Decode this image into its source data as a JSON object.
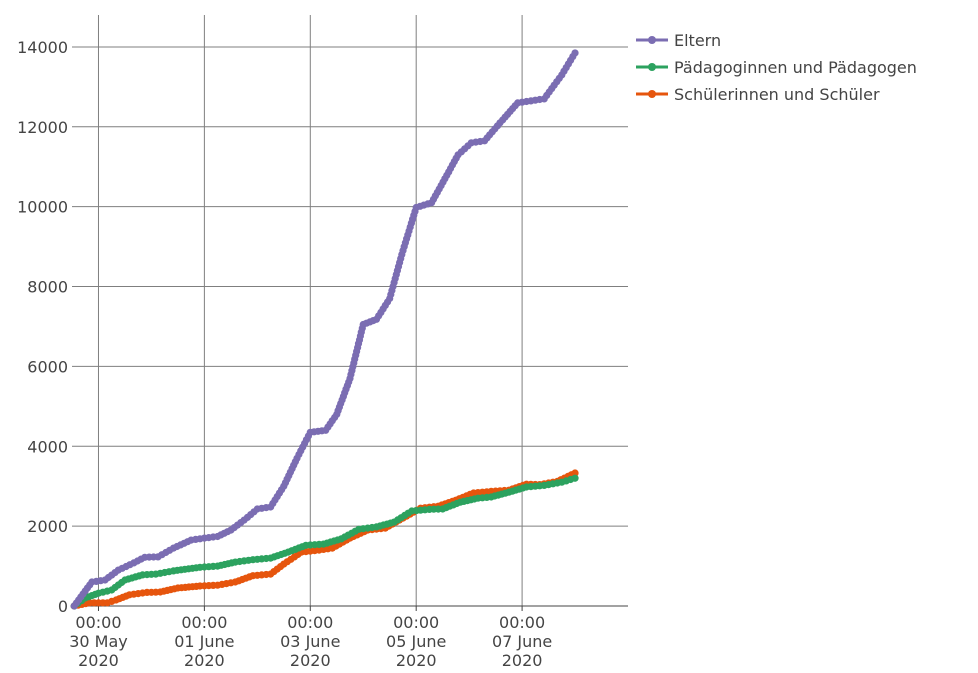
{
  "chart_data": {
    "type": "line",
    "title": "",
    "xlabel": "",
    "ylabel": "",
    "x_ticks": [
      {
        "date": "2020-05-30T00:00",
        "lines": [
          "00:00",
          "30 May",
          "2020"
        ]
      },
      {
        "date": "2020-06-01T00:00",
        "lines": [
          "00:00",
          "01 June",
          "2020"
        ]
      },
      {
        "date": "2020-06-03T00:00",
        "lines": [
          "00:00",
          "03 June",
          "2020"
        ]
      },
      {
        "date": "2020-06-05T00:00",
        "lines": [
          "00:00",
          "05 June",
          "2020"
        ]
      },
      {
        "date": "2020-06-07T00:00",
        "lines": [
          "00:00",
          "07 June",
          "2020"
        ]
      }
    ],
    "y_ticks": [
      0,
      2000,
      4000,
      6000,
      8000,
      10000,
      12000,
      14000
    ],
    "xlim": [
      "2020-05-29T12:00",
      "2020-06-09T00:00"
    ],
    "ylim": [
      0,
      14800
    ],
    "grid": true,
    "legend_position": "top-right",
    "series": [
      {
        "name": "Eltern",
        "color": "#7b6db2",
        "points": [
          [
            "2020-05-29T13:00",
            0
          ],
          [
            "2020-05-29T17:00",
            300
          ],
          [
            "2020-05-29T21:00",
            600
          ],
          [
            "2020-05-30T03:00",
            650
          ],
          [
            "2020-05-30T09:00",
            900
          ],
          [
            "2020-05-30T16:00",
            1080
          ],
          [
            "2020-05-30T21:00",
            1220
          ],
          [
            "2020-05-31T03:00",
            1230
          ],
          [
            "2020-05-31T10:00",
            1450
          ],
          [
            "2020-05-31T18:00",
            1650
          ],
          [
            "2020-06-01T00:00",
            1700
          ],
          [
            "2020-06-01T06:00",
            1740
          ],
          [
            "2020-06-01T12:00",
            1900
          ],
          [
            "2020-06-01T18:00",
            2150
          ],
          [
            "2020-06-02T00:00",
            2430
          ],
          [
            "2020-06-02T06:00",
            2480
          ],
          [
            "2020-06-02T12:00",
            3000
          ],
          [
            "2020-06-02T18:00",
            3700
          ],
          [
            "2020-06-03T00:00",
            4350
          ],
          [
            "2020-06-03T07:00",
            4400
          ],
          [
            "2020-06-03T12:00",
            4800
          ],
          [
            "2020-06-03T18:00",
            5700
          ],
          [
            "2020-06-04T00:00",
            7050
          ],
          [
            "2020-06-04T06:00",
            7180
          ],
          [
            "2020-06-04T12:00",
            7700
          ],
          [
            "2020-06-04T18:00",
            8900
          ],
          [
            "2020-06-05T00:00",
            9980
          ],
          [
            "2020-06-05T07:00",
            10100
          ],
          [
            "2020-06-05T13:00",
            10700
          ],
          [
            "2020-06-05T19:00",
            11300
          ],
          [
            "2020-06-06T01:00",
            11600
          ],
          [
            "2020-06-06T07:00",
            11650
          ],
          [
            "2020-06-06T14:00",
            12100
          ],
          [
            "2020-06-06T22:00",
            12600
          ],
          [
            "2020-06-07T04:00",
            12650
          ],
          [
            "2020-06-07T10:00",
            12700
          ],
          [
            "2020-06-07T18:00",
            13300
          ],
          [
            "2020-06-08T00:00",
            13850
          ]
        ]
      },
      {
        "name": "Pädagoginnen und Pädagogen",
        "color": "#2ca25f",
        "points": [
          [
            "2020-05-29T13:00",
            0
          ],
          [
            "2020-05-29T18:00",
            200
          ],
          [
            "2020-05-30T00:00",
            320
          ],
          [
            "2020-05-30T06:00",
            400
          ],
          [
            "2020-05-30T12:00",
            650
          ],
          [
            "2020-05-30T20:00",
            780
          ],
          [
            "2020-05-31T02:00",
            800
          ],
          [
            "2020-05-31T10:00",
            880
          ],
          [
            "2020-05-31T22:00",
            970
          ],
          [
            "2020-06-01T06:00",
            1000
          ],
          [
            "2020-06-01T14:00",
            1100
          ],
          [
            "2020-06-01T22:00",
            1160
          ],
          [
            "2020-06-02T06:00",
            1200
          ],
          [
            "2020-06-02T14:00",
            1350
          ],
          [
            "2020-06-02T22:00",
            1520
          ],
          [
            "2020-06-03T06:00",
            1550
          ],
          [
            "2020-06-03T14:00",
            1680
          ],
          [
            "2020-06-03T22:00",
            1920
          ],
          [
            "2020-06-04T06:00",
            1980
          ],
          [
            "2020-06-04T14:00",
            2100
          ],
          [
            "2020-06-04T22:00",
            2380
          ],
          [
            "2020-06-05T06:00",
            2420
          ],
          [
            "2020-06-05T12:00",
            2430
          ],
          [
            "2020-06-05T20:00",
            2600
          ],
          [
            "2020-06-06T04:00",
            2700
          ],
          [
            "2020-06-06T10:00",
            2730
          ],
          [
            "2020-06-06T18:00",
            2850
          ],
          [
            "2020-06-07T02:00",
            2980
          ],
          [
            "2020-06-07T10:00",
            3020
          ],
          [
            "2020-06-07T18:00",
            3100
          ],
          [
            "2020-06-08T00:00",
            3200
          ]
        ]
      },
      {
        "name": "Schülerinnen und Schüler",
        "color": "#e6550d",
        "points": [
          [
            "2020-05-29T13:00",
            0
          ],
          [
            "2020-05-29T20:00",
            80
          ],
          [
            "2020-05-30T04:00",
            80
          ],
          [
            "2020-05-30T08:00",
            150
          ],
          [
            "2020-05-30T14:00",
            280
          ],
          [
            "2020-05-30T22:00",
            340
          ],
          [
            "2020-05-31T04:00",
            350
          ],
          [
            "2020-05-31T12:00",
            450
          ],
          [
            "2020-05-31T22:00",
            500
          ],
          [
            "2020-06-01T06:00",
            520
          ],
          [
            "2020-06-01T14:00",
            600
          ],
          [
            "2020-06-01T22:00",
            760
          ],
          [
            "2020-06-02T06:00",
            800
          ],
          [
            "2020-06-02T12:00",
            1050
          ],
          [
            "2020-06-02T20:00",
            1350
          ],
          [
            "2020-06-03T04:00",
            1400
          ],
          [
            "2020-06-03T10:00",
            1450
          ],
          [
            "2020-06-03T18:00",
            1700
          ],
          [
            "2020-06-04T02:00",
            1900
          ],
          [
            "2020-06-04T10:00",
            1950
          ],
          [
            "2020-06-04T18:00",
            2200
          ],
          [
            "2020-06-05T02:00",
            2450
          ],
          [
            "2020-06-05T10:00",
            2500
          ],
          [
            "2020-06-05T18:00",
            2650
          ],
          [
            "2020-06-06T02:00",
            2830
          ],
          [
            "2020-06-06T10:00",
            2870
          ],
          [
            "2020-06-06T18:00",
            2900
          ],
          [
            "2020-06-07T02:00",
            3050
          ],
          [
            "2020-06-07T08:00",
            3040
          ],
          [
            "2020-06-07T16:00",
            3120
          ],
          [
            "2020-06-08T00:00",
            3330
          ]
        ]
      }
    ]
  }
}
